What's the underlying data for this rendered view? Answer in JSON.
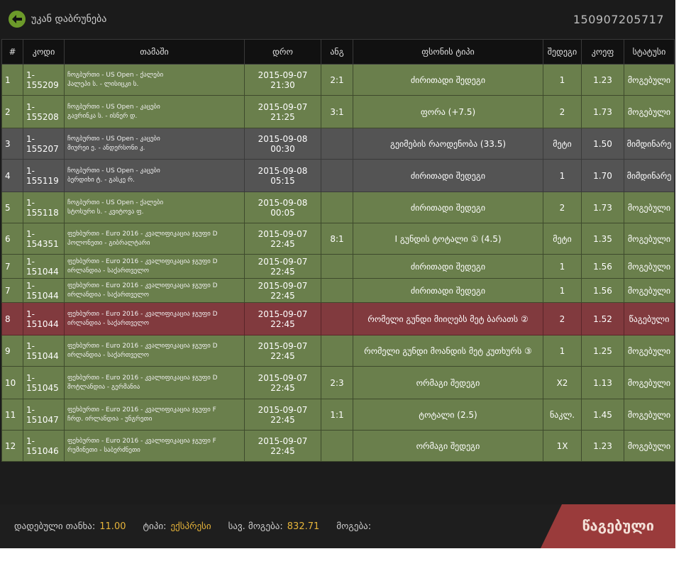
{
  "header": {
    "back_label": "უკან დაბრუნება",
    "bet_id": "150907205717"
  },
  "table": {
    "columns": [
      "#",
      "კოდი",
      "თამაში",
      "დრო",
      "ანგ",
      "ფსონის ტიპი",
      "შედეგი",
      "კოეფ",
      "სტატუსი"
    ],
    "rows": [
      {
        "n": "1",
        "code": "1-155209",
        "game1": "ჩოგბურთი - US Open - ქალები",
        "game2": "ჰალეპი ს. - ლისიცკი ს.",
        "time": "2015-09-07 21:30",
        "score": "2:1",
        "type": "ძირითადი შედეგი",
        "result": "1",
        "odds": "1.23",
        "status": "მოგებული",
        "state": "won"
      },
      {
        "n": "2",
        "code": "1-155208",
        "game1": "ჩოგბურთი - US Open - კაცები",
        "game2": "გავრინკა ს. - ისნერ დ.",
        "time": "2015-09-07 21:25",
        "score": "3:1",
        "type": "ფორა (+7.5)",
        "result": "2",
        "odds": "1.73",
        "status": "მოგებული",
        "state": "won"
      },
      {
        "n": "3",
        "code": "1-155207",
        "game1": "ჩოგბურთი - US Open - კაცები",
        "game2": "მიურეი ე. - ანდერსონი კ.",
        "time": "2015-09-08 00:30",
        "score": "",
        "type": "გეიმების რაოდენობა (33.5)",
        "result": "მეტი",
        "odds": "1.50",
        "status": "მიმდინარე",
        "state": "pending"
      },
      {
        "n": "4",
        "code": "1-155119",
        "game1": "ჩოგბურთი - US Open - კაცები",
        "game2": "ბერდიხი ტ. - გასკე რ.",
        "time": "2015-09-08 05:15",
        "score": "",
        "type": "ძირითადი შედეგი",
        "result": "1",
        "odds": "1.70",
        "status": "მიმდინარე",
        "state": "pending"
      },
      {
        "n": "5",
        "code": "1-155118",
        "game1": "ჩოგბურთი - US Open - ქალები",
        "game2": "სტოსური ს. - კვიტოვა ფ.",
        "time": "2015-09-08 00:05",
        "score": "",
        "type": "ძირითადი შედეგი",
        "result": "2",
        "odds": "1.73",
        "status": "მოგებული",
        "state": "won"
      },
      {
        "n": "6",
        "code": "1-154351",
        "game1": "ფეხბურთი - Euro 2016 - კვალიფიკაცია ჯგუფი D",
        "game2": "პოლონეთი - გიბრალტარი",
        "time": "2015-09-07 22:45",
        "score": "8:1",
        "type": "I გუნდის ტოტალი ① (4.5)",
        "result": "მეტი",
        "odds": "1.35",
        "status": "მოგებული",
        "state": "won"
      },
      {
        "n": "7",
        "code": "1-151044",
        "game1": "ფეხბურთი - Euro 2016 - კვალიფიკაცია ჯგუფი D",
        "game2": "ირლანდია - საქართველო",
        "time": "2015-09-07 22:45",
        "score": "",
        "type": "ძირითადი შედეგი",
        "result": "1",
        "odds": "1.56",
        "status": "მოგებული",
        "state": "won"
      },
      {
        "n": "7",
        "code": "1-151044",
        "game1": "ფეხბურთი - Euro 2016 - კვალიფიკაცია ჯგუფი D",
        "game2": "ირლანდია - საქართველო",
        "time": "2015-09-07 22:45",
        "score": "",
        "type": "ძირითადი შედეგი",
        "result": "1",
        "odds": "1.56",
        "status": "მოგებული",
        "state": "won"
      },
      {
        "n": "8",
        "code": "1-151044",
        "game1": "ფეხბურთი - Euro 2016 - კვალიფიკაცია ჯგუფი D",
        "game2": "ირლანდია - საქართველო",
        "time": "2015-09-07 22:45",
        "score": "",
        "type": "რომელი გუნდი მიიღებს მეტ ბარათს ②",
        "result": "2",
        "odds": "1.52",
        "status": "წაგებული",
        "state": "lost"
      },
      {
        "n": "9",
        "code": "1-151044",
        "game1": "ფეხბურთი - Euro 2016 - კვალიფიკაცია ჯგუფი D",
        "game2": "ირლანდია - საქართველო",
        "time": "2015-09-07 22:45",
        "score": "",
        "type": "რომელი გუნდი მოანდის მეტ კუთხურს ③",
        "result": "1",
        "odds": "1.25",
        "status": "მოგებული",
        "state": "won"
      },
      {
        "n": "10",
        "code": "1-151045",
        "game1": "ფეხბურთი - Euro 2016 - კვალიფიკაცია ჯგუფი D",
        "game2": "შოტლანდია - გერმანია",
        "time": "2015-09-07 22:45",
        "score": "2:3",
        "type": "ორმაგი შედეგი",
        "result": "X2",
        "odds": "1.13",
        "status": "მოგებული",
        "state": "won"
      },
      {
        "n": "11",
        "code": "1-151047",
        "game1": "ფეხბურთი - Euro 2016 - კვალიფიკაცია ჯგუფი F",
        "game2": "ჩრდ. ირლანდია - უნგრეთი",
        "time": "2015-09-07 22:45",
        "score": "1:1",
        "type": "ტოტალი (2.5)",
        "result": "ნაკლ.",
        "odds": "1.45",
        "status": "მოგებული",
        "state": "won"
      },
      {
        "n": "12",
        "code": "1-151046",
        "game1": "ფეხბურთი - Euro 2016 - კვალიფიკაცია ჯგუფი F",
        "game2": "რუმინეთი - საბერძნეთი",
        "time": "2015-09-07 22:45",
        "score": "",
        "type": "ორმაგი შედეგი",
        "result": "1X",
        "odds": "1.23",
        "status": "მოგებული",
        "state": "won"
      }
    ]
  },
  "footer": {
    "stake_label": "დადებული თანხა:",
    "stake_value": "11.00",
    "type_label": "ტიპი:",
    "type_value": "ექსპრესი",
    "potential_label": "სავ. მოგება:",
    "potential_value": "832.71",
    "win_label": "მოგება:",
    "status": "წაგებული"
  },
  "colors": {
    "won_row": "#6a7f4c",
    "pending_row": "#545454",
    "lost_row": "#813a3e",
    "accent_value": "#e6b43a",
    "status_box": "#9a3b3b",
    "back_icon": "#6c9a2a"
  }
}
